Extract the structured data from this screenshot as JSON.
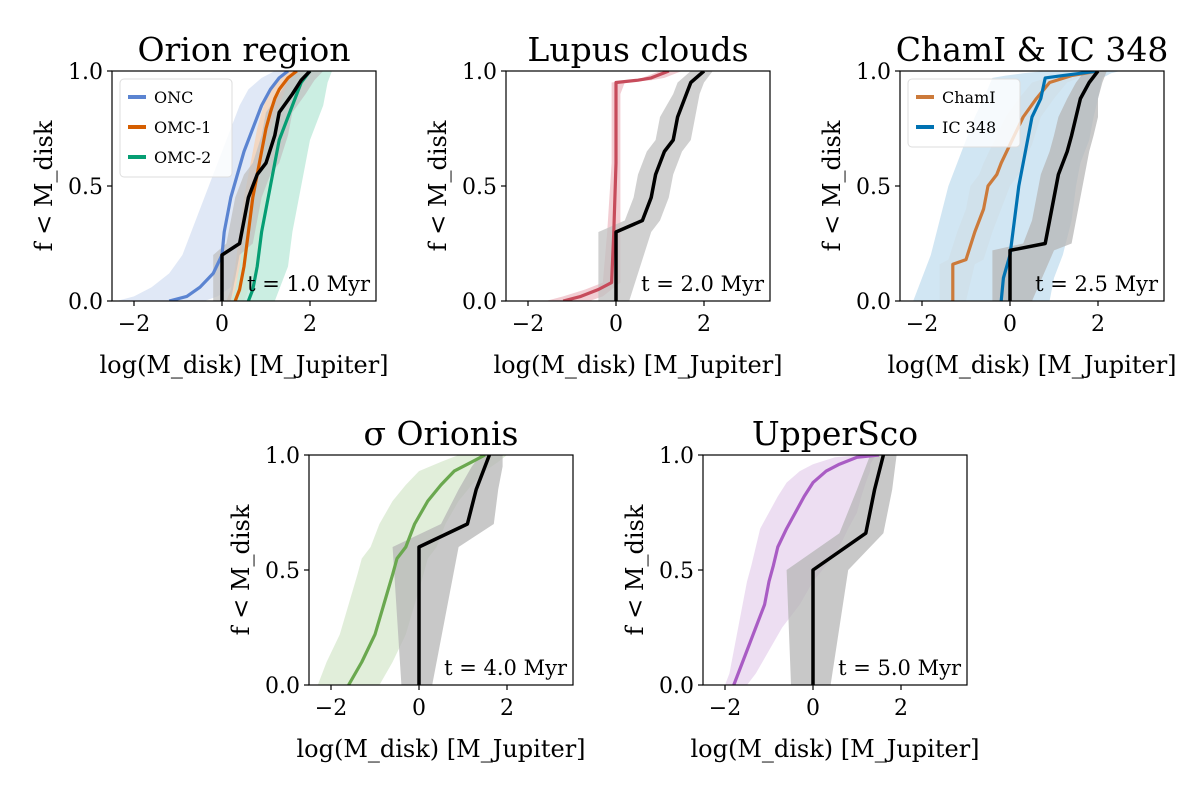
{
  "chart_data": [
    {
      "type": "line",
      "title": "Orion region",
      "xlabel": "log(M_disk) [M_Jupiter]",
      "ylabel": "f < M_disk",
      "xlim": [
        -2.5,
        3.5
      ],
      "ylim": [
        0,
        1
      ],
      "xticks": [
        "−2",
        "0",
        "2"
      ],
      "yticks": [
        "0.0",
        "0.5",
        "1.0"
      ],
      "annotation": "t = 1.0 Myr",
      "legend": "top-left",
      "series": [
        {
          "name": "ONC",
          "color": "#5b84d1",
          "band": "#dbe4f4",
          "x": [
            -1.2,
            -0.8,
            -0.5,
            -0.2,
            0.0,
            0.05,
            0.2,
            0.35,
            0.5,
            0.7,
            0.9,
            1.1,
            1.3,
            1.5
          ],
          "y": [
            0.0,
            0.02,
            0.06,
            0.12,
            0.2,
            0.3,
            0.45,
            0.55,
            0.65,
            0.75,
            0.85,
            0.92,
            0.97,
            1.0
          ],
          "band_lo": [
            -2.4,
            -2.0,
            -1.6,
            -1.2,
            -0.9,
            -0.7,
            -0.4,
            -0.2,
            0.0,
            0.2,
            0.4,
            0.6,
            0.9,
            1.2
          ],
          "band_hi": [
            -0.4,
            -0.1,
            0.2,
            0.4,
            0.5,
            0.6,
            0.8,
            0.9,
            1.0,
            1.1,
            1.3,
            1.5,
            1.7,
            1.9
          ]
        },
        {
          "name": "OMC-1",
          "color": "#d55e00",
          "band": "#f5d3b8",
          "x": [
            0.3,
            0.4,
            0.5,
            0.6,
            0.7,
            0.8,
            0.9,
            1.0,
            1.1,
            1.2,
            1.3,
            1.5,
            1.7
          ],
          "y": [
            0.0,
            0.05,
            0.15,
            0.3,
            0.45,
            0.55,
            0.65,
            0.75,
            0.82,
            0.88,
            0.92,
            0.97,
            1.0
          ],
          "band_lo": [
            0.1,
            0.2,
            0.3,
            0.4,
            0.5,
            0.6,
            0.7,
            0.8,
            0.9,
            1.0,
            1.1,
            1.3,
            1.5
          ],
          "band_hi": [
            0.5,
            0.6,
            0.8,
            0.9,
            1.0,
            1.1,
            1.2,
            1.3,
            1.4,
            1.5,
            1.6,
            1.7,
            1.9
          ]
        },
        {
          "name": "OMC-2",
          "color": "#069e73",
          "band": "#c2ebdd",
          "x": [
            0.6,
            0.7,
            0.8,
            0.9,
            1.0,
            1.1,
            1.2,
            1.3,
            1.5,
            1.6,
            1.8,
            2.0
          ],
          "y": [
            0.0,
            0.05,
            0.15,
            0.3,
            0.4,
            0.5,
            0.6,
            0.7,
            0.8,
            0.85,
            0.95,
            1.0
          ],
          "band_lo": [
            0.2,
            0.3,
            0.4,
            0.5,
            0.6,
            0.8,
            0.9,
            1.0,
            1.2,
            1.3,
            1.5,
            1.7
          ],
          "band_hi": [
            1.2,
            1.3,
            1.5,
            1.6,
            1.7,
            1.8,
            1.9,
            2.0,
            2.2,
            2.3,
            2.4,
            2.5
          ]
        },
        {
          "name": "",
          "color": "#000000",
          "band": "#c0c0c0",
          "x": [
            0.0,
            0.0,
            0.4,
            0.6,
            0.8,
            1.0,
            1.2,
            1.3,
            1.6,
            1.8,
            2.0
          ],
          "y": [
            0.0,
            0.2,
            0.25,
            0.45,
            0.55,
            0.6,
            0.72,
            0.82,
            0.9,
            0.96,
            1.0
          ],
          "band_lo": [
            -0.2,
            -0.2,
            0.1,
            0.3,
            0.5,
            0.7,
            0.9,
            1.0,
            1.3,
            1.5,
            1.7
          ],
          "band_hi": [
            0.2,
            0.4,
            0.7,
            0.9,
            1.1,
            1.3,
            1.5,
            1.6,
            1.9,
            2.1,
            2.3
          ]
        }
      ]
    },
    {
      "type": "line",
      "title": "Lupus clouds",
      "xlabel": "log(M_disk) [M_Jupiter]",
      "ylabel": "f < M_disk",
      "xlim": [
        -2.5,
        3.5
      ],
      "ylim": [
        0,
        1
      ],
      "xticks": [
        "−2",
        "0",
        "2"
      ],
      "yticks": [
        "0.0",
        "0.5",
        "1.0"
      ],
      "annotation": "t = 2.0 Myr",
      "legend": "none",
      "series": [
        {
          "name": "",
          "color": "#c74b5b",
          "band": "#f0c4cb",
          "x": [
            -1.2,
            -0.8,
            -0.4,
            -0.1,
            -0.05,
            0.0,
            0.0,
            0.0,
            0.5,
            0.8,
            1.2
          ],
          "y": [
            0.0,
            0.02,
            0.05,
            0.08,
            0.3,
            0.6,
            0.9,
            0.95,
            0.96,
            0.97,
            1.0
          ],
          "band_lo": [
            -1.6,
            -1.2,
            -0.7,
            -0.3,
            -0.2,
            -0.1,
            -0.1,
            -0.1,
            0.3,
            0.6,
            1.0
          ],
          "band_hi": [
            -0.6,
            -0.3,
            -0.1,
            0.1,
            0.1,
            0.1,
            0.1,
            0.2,
            0.8,
            1.1,
            1.5
          ]
        },
        {
          "name": "",
          "color": "#000000",
          "band": "#c0c0c0",
          "x": [
            0.0,
            0.0,
            0.6,
            0.8,
            0.9,
            1.1,
            1.3,
            1.4,
            1.6,
            1.7,
            2.0
          ],
          "y": [
            0.0,
            0.3,
            0.35,
            0.45,
            0.55,
            0.65,
            0.7,
            0.8,
            0.9,
            0.95,
            1.0
          ],
          "band_lo": [
            -0.4,
            -0.4,
            0.2,
            0.4,
            0.5,
            0.7,
            0.9,
            1.0,
            1.3,
            1.4,
            1.7
          ],
          "band_hi": [
            0.3,
            0.8,
            1.0,
            1.2,
            1.3,
            1.5,
            1.7,
            1.8,
            1.9,
            2.0,
            2.2
          ]
        }
      ]
    },
    {
      "type": "line",
      "title": "ChamI & IC 348",
      "xlabel": "log(M_disk) [M_Jupiter]",
      "ylabel": "f < M_disk",
      "xlim": [
        -2.5,
        3.5
      ],
      "ylim": [
        0,
        1
      ],
      "xticks": [
        "−2",
        "0",
        "2"
      ],
      "yticks": [
        "0.0",
        "0.5",
        "1.0"
      ],
      "annotation": "t = 2.5 Myr",
      "legend": "top-left",
      "series": [
        {
          "name": "ChamI",
          "color": "#cc7a3a",
          "band": "#f3d7c1",
          "x": [
            -1.3,
            -1.3,
            -1.0,
            -0.8,
            -0.6,
            -0.5,
            -0.3,
            -0.2,
            0.0,
            0.3,
            0.6,
            0.9,
            1.4,
            2.0
          ],
          "y": [
            0.0,
            0.16,
            0.18,
            0.3,
            0.4,
            0.5,
            0.55,
            0.6,
            0.68,
            0.8,
            0.88,
            0.95,
            0.98,
            1.0
          ],
          "band_lo": [
            -1.6,
            -1.6,
            -1.4,
            -1.2,
            -1.0,
            -0.9,
            -0.7,
            -0.6,
            -0.4,
            -0.1,
            0.2,
            0.5,
            1.0,
            1.7
          ],
          "band_hi": [
            -1.0,
            -0.8,
            -0.6,
            -0.4,
            -0.2,
            0.0,
            0.2,
            0.3,
            0.5,
            0.7,
            1.0,
            1.3,
            1.7,
            2.2
          ]
        },
        {
          "name": "IC 348",
          "color": "#0072b2",
          "band": "#c9e2f1",
          "x": [
            -0.2,
            -0.15,
            0.0,
            0.1,
            0.2,
            0.3,
            0.4,
            0.5,
            0.7,
            0.8,
            1.2,
            1.6,
            2.0
          ],
          "y": [
            0.0,
            0.1,
            0.2,
            0.35,
            0.5,
            0.6,
            0.7,
            0.8,
            0.88,
            0.97,
            0.98,
            0.99,
            1.0
          ],
          "band_lo": [
            -2.2,
            -2.0,
            -1.8,
            -1.6,
            -1.4,
            -1.2,
            -1.0,
            -0.8,
            -0.6,
            -0.4,
            -0.1,
            0.3,
            0.8
          ],
          "band_hi": [
            0.9,
            1.0,
            1.2,
            1.4,
            1.5,
            1.6,
            1.8,
            1.9,
            2.0,
            2.1,
            2.2,
            2.3,
            2.5
          ]
        },
        {
          "name": "",
          "color": "#000000",
          "band": "#b5b5b5",
          "x": [
            0.0,
            0.0,
            0.8,
            0.9,
            1.0,
            1.1,
            1.3,
            1.4,
            1.5,
            1.6,
            1.8,
            2.0
          ],
          "y": [
            0.0,
            0.22,
            0.25,
            0.35,
            0.45,
            0.55,
            0.65,
            0.72,
            0.8,
            0.88,
            0.95,
            1.0
          ],
          "band_lo": [
            -0.4,
            -0.4,
            0.3,
            0.5,
            0.6,
            0.7,
            0.9,
            1.0,
            1.1,
            1.3,
            1.5,
            1.7
          ],
          "band_hi": [
            0.5,
            1.0,
            1.4,
            1.5,
            1.6,
            1.7,
            1.8,
            1.9,
            2.0,
            2.0,
            2.1,
            2.2
          ]
        }
      ]
    },
    {
      "type": "line",
      "title": "σ Orionis",
      "xlabel": "log(M_disk) [M_Jupiter]",
      "ylabel": "f < M_disk",
      "xlim": [
        -2.5,
        3.5
      ],
      "ylim": [
        0,
        1
      ],
      "xticks": [
        "−2",
        "0",
        "2"
      ],
      "yticks": [
        "0.0",
        "0.5",
        "1.0"
      ],
      "annotation": "t = 4.0 Myr",
      "legend": "none",
      "series": [
        {
          "name": "",
          "color": "#6aa84f",
          "band": "#dcebd3",
          "x": [
            -1.6,
            -1.3,
            -1.0,
            -0.8,
            -0.6,
            -0.5,
            -0.3,
            -0.1,
            0.2,
            0.5,
            0.8,
            1.2,
            1.5
          ],
          "y": [
            0.0,
            0.1,
            0.22,
            0.35,
            0.48,
            0.55,
            0.6,
            0.7,
            0.8,
            0.87,
            0.93,
            0.97,
            1.0
          ],
          "band_lo": [
            -2.3,
            -2.1,
            -1.8,
            -1.6,
            -1.4,
            -1.3,
            -1.1,
            -0.9,
            -0.6,
            -0.3,
            0.0,
            0.5,
            0.9
          ],
          "band_hi": [
            -0.9,
            -0.6,
            -0.3,
            -0.1,
            0.1,
            0.2,
            0.4,
            0.6,
            0.9,
            1.2,
            1.5,
            1.8,
            2.0
          ]
        },
        {
          "name": "",
          "color": "#000000",
          "band": "#b5b5b5",
          "x": [
            0.0,
            0.0,
            1.1,
            1.3,
            1.5,
            1.6
          ],
          "y": [
            0.0,
            0.6,
            0.7,
            0.85,
            0.95,
            1.0
          ],
          "band_lo": [
            -0.4,
            -0.6,
            0.5,
            0.9,
            1.2,
            1.4
          ],
          "band_hi": [
            0.3,
            0.9,
            1.7,
            1.8,
            1.9,
            1.9
          ]
        }
      ]
    },
    {
      "type": "line",
      "title": "UpperSco",
      "xlabel": "log(M_disk) [M_Jupiter]",
      "ylabel": "f < M_disk",
      "xlim": [
        -2.5,
        3.5
      ],
      "ylim": [
        0,
        1
      ],
      "xticks": [
        "−2",
        "0",
        "2"
      ],
      "yticks": [
        "0.0",
        "0.5",
        "1.0"
      ],
      "annotation": "t = 5.0 Myr",
      "legend": "none",
      "series": [
        {
          "name": "",
          "color": "#a95cc4",
          "band": "#ead8f0",
          "x": [
            -1.8,
            -1.7,
            -1.5,
            -1.3,
            -1.1,
            -1.0,
            -0.9,
            -0.8,
            -0.6,
            -0.4,
            -0.2,
            0.0,
            0.3,
            0.6,
            1.0,
            1.5
          ],
          "y": [
            0.0,
            0.05,
            0.15,
            0.25,
            0.35,
            0.45,
            0.52,
            0.6,
            0.68,
            0.75,
            0.82,
            0.88,
            0.93,
            0.96,
            0.99,
            1.0
          ],
          "band_lo": [
            -2.0,
            -1.9,
            -1.8,
            -1.7,
            -1.6,
            -1.5,
            -1.4,
            -1.3,
            -1.2,
            -1.0,
            -0.8,
            -0.6,
            -0.3,
            0.0,
            0.5,
            1.1
          ],
          "band_hi": [
            -1.5,
            -1.3,
            -1.0,
            -0.7,
            -0.3,
            0.0,
            0.3,
            0.6,
            0.8,
            1.0,
            1.1,
            1.2,
            1.3,
            1.3,
            1.4,
            1.6
          ]
        },
        {
          "name": "",
          "color": "#000000",
          "band": "#b5b5b5",
          "x": [
            0.0,
            0.0,
            1.2,
            1.4,
            1.6
          ],
          "y": [
            0.0,
            0.5,
            0.66,
            0.85,
            1.0
          ],
          "band_lo": [
            -0.5,
            -0.6,
            0.6,
            1.0,
            1.3
          ],
          "band_hi": [
            0.4,
            0.8,
            1.6,
            1.8,
            1.9
          ]
        }
      ]
    }
  ]
}
